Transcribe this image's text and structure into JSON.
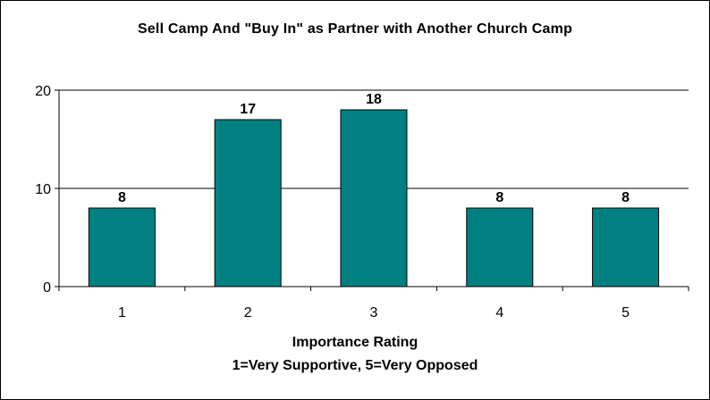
{
  "chart_data": {
    "type": "bar",
    "title": "Sell Camp And \"Buy In\" as Partner with Another Church Camp",
    "xlabel_line1": "Importance Rating",
    "xlabel_line2": "1=Very Supportive, 5=Very Opposed",
    "ylabel": "",
    "categories": [
      "1",
      "2",
      "3",
      "4",
      "5"
    ],
    "values": [
      8,
      17,
      18,
      8,
      8
    ],
    "ylim": [
      0,
      20
    ],
    "yticks": [
      0,
      10,
      20
    ],
    "grid": true,
    "legend": "none",
    "bar_color": "#008080"
  }
}
